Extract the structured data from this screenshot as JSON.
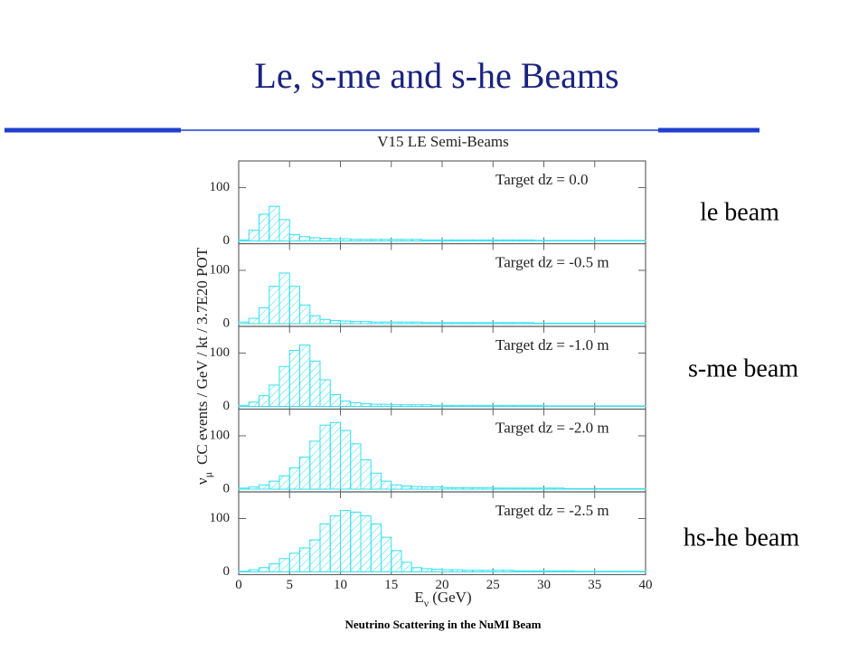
{
  "title": "Le, s-me and s-he Beams",
  "side_labels": [
    "le beam",
    "s-me beam",
    "hs-he beam"
  ],
  "footer": "Neutrino Scattering in the NuMI Beam",
  "chart_data": {
    "type": "histogram",
    "title": "V15 LE Semi-Beams",
    "xlabel": {
      "symbol": "E",
      "subscript": "ν",
      "text": "(GeV)"
    },
    "ylabel": {
      "symbol": "ν",
      "subscript": "μ",
      "text": "CC events / GeV / kt / 3.7E20 POT"
    },
    "bins": [
      0,
      1,
      2,
      3,
      4,
      5,
      6,
      7,
      8,
      9,
      10,
      11,
      12,
      13,
      14,
      15,
      16,
      17,
      18,
      19,
      20,
      21,
      22,
      23,
      24,
      25,
      26,
      27,
      28,
      29,
      30,
      31,
      32,
      33,
      34,
      35,
      36,
      37,
      38,
      39,
      40
    ],
    "xlim": [
      0,
      40
    ],
    "xticks": [
      0,
      5,
      10,
      15,
      20,
      25,
      30,
      35,
      40
    ],
    "ylim": [
      0,
      150
    ],
    "yticks": [
      0,
      100
    ],
    "series": [
      {
        "name": "Target dz = 0.0",
        "color": "#33e0ee",
        "values": [
          2,
          20,
          50,
          65,
          40,
          12,
          8,
          6,
          5,
          4,
          4,
          3,
          3,
          3,
          3,
          3,
          3,
          3,
          2,
          2,
          2,
          2,
          2,
          2,
          2,
          2,
          2,
          2,
          2,
          1,
          1,
          1,
          1,
          1,
          1,
          1,
          1,
          1,
          1,
          1
        ]
      },
      {
        "name": "Target dz = -0.5 m",
        "color": "#33e0ee",
        "values": [
          3,
          10,
          30,
          70,
          95,
          70,
          35,
          15,
          8,
          6,
          5,
          4,
          4,
          3,
          3,
          3,
          3,
          3,
          2,
          2,
          2,
          2,
          2,
          2,
          2,
          2,
          2,
          2,
          2,
          1,
          1,
          1,
          1,
          1,
          1,
          1,
          1,
          1,
          1,
          1
        ]
      },
      {
        "name": "Target dz = -1.0 m",
        "color": "#33e0ee",
        "values": [
          2,
          8,
          20,
          40,
          75,
          105,
          115,
          85,
          50,
          22,
          10,
          7,
          5,
          4,
          4,
          3,
          3,
          3,
          3,
          2,
          2,
          2,
          2,
          2,
          2,
          2,
          2,
          2,
          2,
          2,
          1,
          1,
          1,
          1,
          1,
          1,
          1,
          1,
          1,
          1
        ]
      },
      {
        "name": "Target dz = -2.0 m",
        "color": "#33e0ee",
        "values": [
          2,
          4,
          8,
          15,
          25,
          40,
          60,
          90,
          120,
          125,
          110,
          85,
          55,
          30,
          15,
          8,
          6,
          5,
          4,
          4,
          3,
          3,
          3,
          3,
          3,
          2,
          2,
          2,
          2,
          2,
          2,
          2,
          1,
          1,
          1,
          1,
          1,
          1,
          1,
          1
        ]
      },
      {
        "name": "Target dz = -2.5 m",
        "color": "#33e0ee",
        "values": [
          1,
          4,
          8,
          15,
          25,
          35,
          45,
          60,
          90,
          105,
          115,
          112,
          105,
          90,
          65,
          40,
          18,
          8,
          6,
          5,
          4,
          4,
          3,
          3,
          3,
          3,
          3,
          2,
          2,
          2,
          2,
          2,
          2,
          1,
          1,
          1,
          1,
          1,
          1,
          1
        ]
      }
    ]
  }
}
